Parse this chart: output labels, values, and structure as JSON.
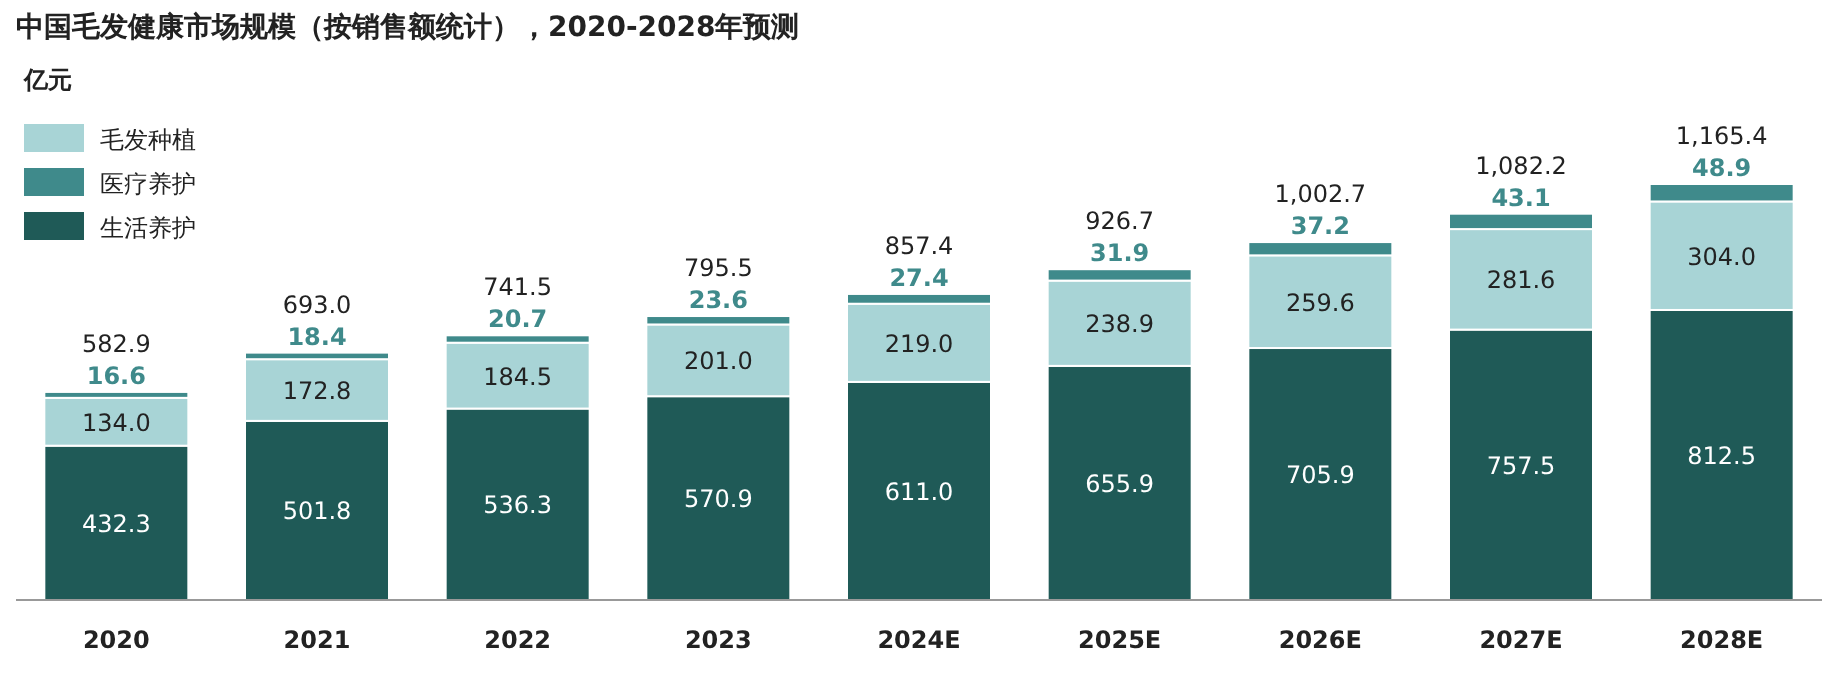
{
  "chart_data": {
    "type": "bar",
    "stacked": true,
    "title": "中国毛发健康市场规模（按销售额统计），2020-2028年预测",
    "ylabel": "亿元",
    "legend": "top left",
    "categories": [
      "2020",
      "2021",
      "2022",
      "2023",
      "2024E",
      "2025E",
      "2026E",
      "2027E",
      "2028E"
    ],
    "series": [
      {
        "name": "生活养护",
        "color": "#1f5a57",
        "values": [
          432.3,
          501.8,
          536.3,
          570.9,
          611.0,
          655.9,
          705.9,
          757.5,
          812.5
        ],
        "value_labels": [
          "432.3",
          "501.8",
          "536.3",
          "570.9",
          "611.0",
          "655.9",
          "705.9",
          "757.5",
          "812.5"
        ]
      },
      {
        "name": "毛发种植",
        "color": "#a8d4d6",
        "values": [
          134.0,
          172.8,
          184.5,
          201.0,
          219.0,
          238.9,
          259.6,
          281.6,
          304.0
        ],
        "value_labels": [
          "134.0",
          "172.8",
          "184.5",
          "201.0",
          "219.0",
          "238.9",
          "259.6",
          "281.6",
          "304.0"
        ]
      },
      {
        "name": "医疗养护",
        "color": "#3f8a8b",
        "values": [
          16.6,
          18.4,
          20.7,
          23.6,
          27.4,
          31.9,
          37.2,
          43.1,
          48.9
        ],
        "value_labels": [
          "16.6",
          "18.4",
          "20.7",
          "23.6",
          "27.4",
          "31.9",
          "37.2",
          "43.1",
          "48.9"
        ]
      }
    ],
    "totals": [
      "582.9",
      "693.0",
      "741.5",
      "795.5",
      "857.4",
      "926.7",
      "1,002.7",
      "1,082.2",
      "1,165.4"
    ]
  }
}
